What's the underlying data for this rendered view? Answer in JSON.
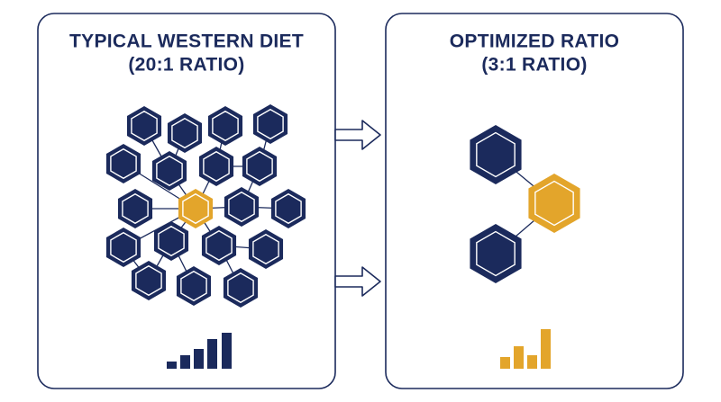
{
  "panels": [
    {
      "title": "TYPICAL WESTERN DIET",
      "subtitle": "(20:1 RATIO)"
    },
    {
      "title": "OPTIMIZED RATIO",
      "subtitle": "(3:1 RATIO)"
    }
  ]
}
